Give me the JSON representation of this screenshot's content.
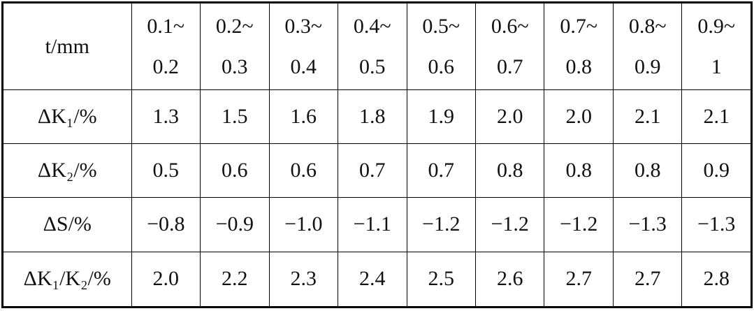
{
  "table": {
    "header": [
      "t/mm",
      "0.1~0.2",
      "0.2~0.3",
      "0.3~0.4",
      "0.4~0.5",
      "0.5~0.6",
      "0.6~0.7",
      "0.7~0.8",
      "0.8~0.9",
      "0.9~1"
    ],
    "rows": [
      [
        "ΔK₁/%",
        "1.3",
        "1.5",
        "1.6",
        "1.8",
        "1.9",
        "2.0",
        "2.0",
        "2.1",
        "2.1"
      ],
      [
        "ΔK₂/%",
        "0.5",
        "0.6",
        "0.6",
        "0.7",
        "0.7",
        "0.8",
        "0.8",
        "0.8",
        "0.9"
      ],
      [
        "ΔS/%",
        "−0.8",
        "−0.9",
        "−1.0",
        "−1.1",
        "−1.2",
        "−1.2",
        "−1.2",
        "−1.3",
        "−1.3"
      ],
      [
        "ΔK₁/K₂/%",
        "2.0",
        "2.2",
        "2.3",
        "2.4",
        "2.5",
        "2.6",
        "2.7",
        "2.7",
        "2.8"
      ]
    ]
  }
}
